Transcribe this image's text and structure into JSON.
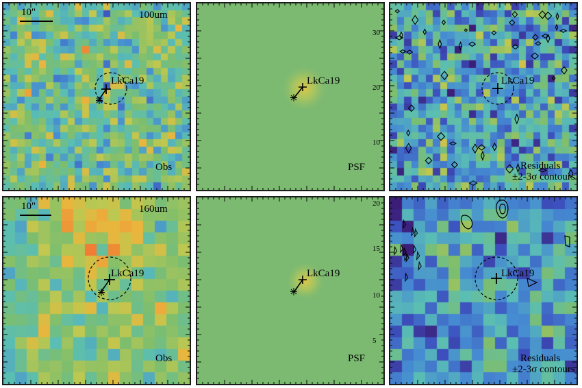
{
  "panels": [
    {
      "id": "obs-100",
      "band": "100um",
      "scale": "10\"",
      "star": "LkCa19",
      "corner": "Obs",
      "kind": "obs"
    },
    {
      "id": "psf-100",
      "star": "LkCa19",
      "corner": "PSF",
      "kind": "psf"
    },
    {
      "id": "res-100",
      "star": "LkCa19",
      "corner_line1": "Residuals",
      "corner_line2": "±2-3σ contours",
      "kind": "res"
    },
    {
      "id": "obs-160",
      "band": "160um",
      "scale": "10\"",
      "star": "LkCa19",
      "corner": "Obs",
      "kind": "obs"
    },
    {
      "id": "psf-160",
      "star": "LkCa19",
      "corner": "PSF",
      "kind": "psf"
    },
    {
      "id": "res-160",
      "star": "LkCa19",
      "corner_line1": "Residuals",
      "corner_line2": "±2-3σ contours",
      "kind": "res"
    }
  ],
  "axis_labels": {
    "psf_100": [
      "30",
      "20",
      "10"
    ],
    "psf_160": [
      "20",
      "15",
      "10",
      "5"
    ]
  },
  "colors": {
    "frame": "#1a1a1a",
    "psf_background": "#7cba72"
  }
}
